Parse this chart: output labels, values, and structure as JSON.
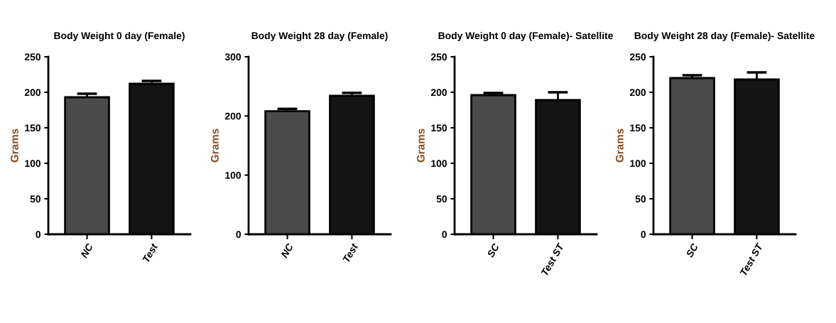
{
  "chart_data": [
    {
      "type": "bar",
      "title": "Body Weight 0 day (Female)",
      "ylabel": "Grams",
      "categories": [
        "NC",
        "Test"
      ],
      "values": [
        193,
        212
      ],
      "errors": [
        5,
        4
      ],
      "colors": [
        "#4a4a4a",
        "#141414"
      ],
      "ylim": [
        0,
        250
      ],
      "yticks": [
        0,
        50,
        100,
        150,
        200,
        250
      ],
      "grid": false,
      "legend": false
    },
    {
      "type": "bar",
      "title": "Body Weight 28 day (Female)",
      "ylabel": "Grams",
      "categories": [
        "NC",
        "Test"
      ],
      "values": [
        208,
        234
      ],
      "errors": [
        4,
        5
      ],
      "colors": [
        "#4a4a4a",
        "#141414"
      ],
      "ylim": [
        0,
        300
      ],
      "yticks": [
        0,
        100,
        200,
        300
      ],
      "grid": false,
      "legend": false
    },
    {
      "type": "bar",
      "title": "Body Weight 0 day (Female)- Satellite",
      "ylabel": "Grams",
      "categories": [
        "SC",
        "Test ST"
      ],
      "values": [
        196,
        189
      ],
      "errors": [
        3,
        11
      ],
      "colors": [
        "#4a4a4a",
        "#141414"
      ],
      "ylim": [
        0,
        250
      ],
      "yticks": [
        0,
        50,
        100,
        150,
        200,
        250
      ],
      "grid": false,
      "legend": false
    },
    {
      "type": "bar",
      "title": "Body Weight 28 day (Female)- Satellite",
      "ylabel": "Grams",
      "categories": [
        "SC",
        "Test ST"
      ],
      "values": [
        220,
        218
      ],
      "errors": [
        4,
        10
      ],
      "colors": [
        "#4a4a4a",
        "#141414"
      ],
      "ylim": [
        0,
        250
      ],
      "yticks": [
        0,
        50,
        100,
        150,
        200,
        250
      ],
      "grid": false,
      "legend": false
    }
  ]
}
